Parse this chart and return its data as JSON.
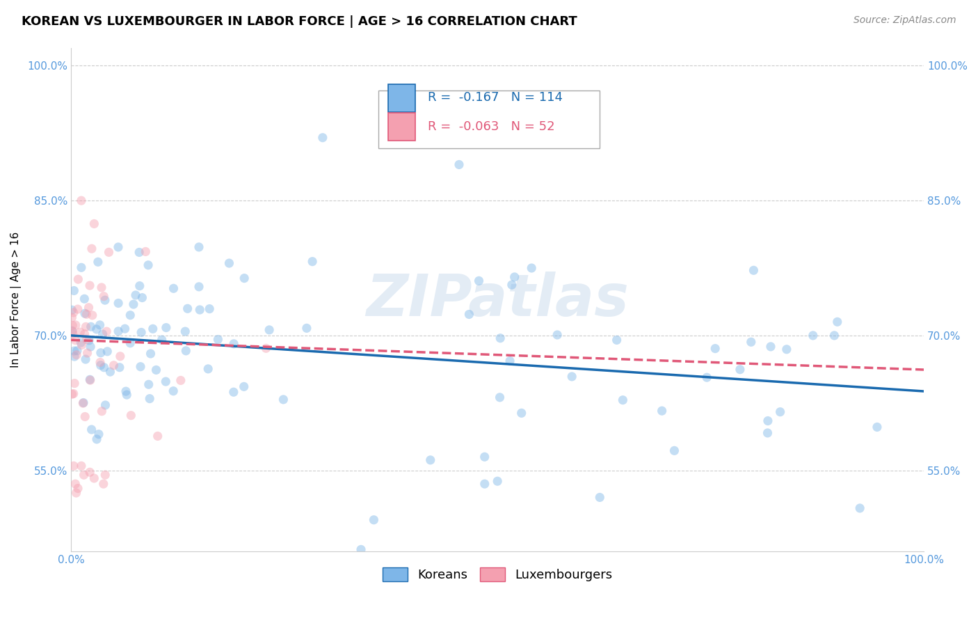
{
  "title": "KOREAN VS LUXEMBOURGER IN LABOR FORCE | AGE > 16 CORRELATION CHART",
  "source": "Source: ZipAtlas.com",
  "ylabel": "In Labor Force | Age > 16",
  "watermark": "ZIPatlas",
  "xlim": [
    0.0,
    1.0
  ],
  "ylim": [
    0.46,
    1.02
  ],
  "ytick_positions": [
    0.55,
    0.7,
    0.85,
    1.0
  ],
  "ytick_labels": [
    "55.0%",
    "70.0%",
    "85.0%",
    "100.0%"
  ],
  "legend_koreans": "Koreans",
  "legend_luxembourgers": "Luxembourgers",
  "R_korean": -0.167,
  "N_korean": 114,
  "R_luxembourger": -0.063,
  "N_luxembourger": 52,
  "korean_color": "#7EB6E8",
  "luxembourger_color": "#F4A0B0",
  "korean_line_color": "#1A6AAF",
  "luxembourger_line_color": "#E05878",
  "grid_color": "#CCCCCC",
  "axis_color": "#5599DD",
  "background_color": "#FFFFFF",
  "title_fontsize": 13,
  "source_fontsize": 10,
  "axis_label_fontsize": 11,
  "tick_fontsize": 11,
  "legend_fontsize": 13,
  "watermark_fontsize": 60,
  "marker_size": 90,
  "marker_alpha": 0.45,
  "line_width": 2.5,
  "korean_line_start_y": 0.7,
  "korean_line_end_y": 0.638,
  "lux_line_start_y": 0.695,
  "lux_line_end_y": 0.662
}
